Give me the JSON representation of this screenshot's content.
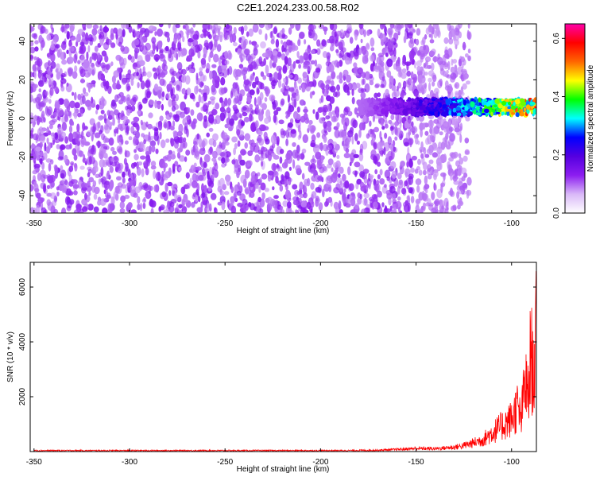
{
  "title": "C2E1.2024.233.00.58.R02",
  "chart_data": [
    {
      "type": "heatmap",
      "xlabel": "Height of straight line (km)",
      "ylabel": "Frequency (Hz)",
      "xlim": [
        -352,
        -87
      ],
      "ylim": [
        -49,
        49
      ],
      "xticks": [
        -350,
        -300,
        -250,
        -200,
        -150,
        -100
      ],
      "yticks": [
        -40,
        -20,
        0,
        20,
        40
      ],
      "grid": false,
      "colorbar": {
        "label": "Normalized spectral amplitude",
        "range": [
          0,
          0.65
        ],
        "ticks": [
          0.0,
          0.2,
          0.4,
          0.6
        ],
        "colormap": [
          "#ffffff",
          "#d9b8f8",
          "#8c1df0",
          "#5500e0",
          "#0000ff",
          "#00ffff",
          "#00ff00",
          "#ffff00",
          "#ff6600",
          "#ff0000",
          "#ff00aa"
        ]
      },
      "features": [
        {
          "description_x_range": [
            -352,
            -122
          ],
          "frequency_range": [
            -49,
            49
          ],
          "amplitude_range": [
            0.0,
            0.12
          ]
        },
        {
          "description_x_range": [
            -180,
            -87
          ],
          "center_frequency_hz": 6,
          "bandwidth_hz": 8,
          "peak_amplitude": 0.6
        }
      ]
    },
    {
      "type": "line",
      "xlabel": "Height of straight line (km)",
      "ylabel": "SNR (10 * v/v)",
      "xlim": [
        -352,
        -87
      ],
      "ylim": [
        0,
        6900
      ],
      "xticks": [
        -350,
        -300,
        -250,
        -200,
        -150,
        -100
      ],
      "yticks": [
        2000,
        4000,
        6000
      ],
      "color": "#ff0000",
      "grid": false,
      "series": [
        {
          "x": [
            -350,
            -330,
            -310,
            -290,
            -270,
            -250,
            -230,
            -210,
            -190,
            -170,
            -160,
            -150,
            -140,
            -130,
            -125,
            -120,
            -115,
            -110,
            -105,
            -100,
            -97,
            -95,
            -93,
            -91,
            -90,
            -89,
            -88,
            -87
          ],
          "y": [
            60,
            60,
            60,
            60,
            60,
            60,
            60,
            60,
            60,
            80,
            120,
            180,
            170,
            250,
            350,
            500,
            700,
            1100,
            1500,
            1900,
            2600,
            1800,
            4100,
            3000,
            6200,
            4600,
            5100,
            6900
          ]
        }
      ]
    }
  ]
}
